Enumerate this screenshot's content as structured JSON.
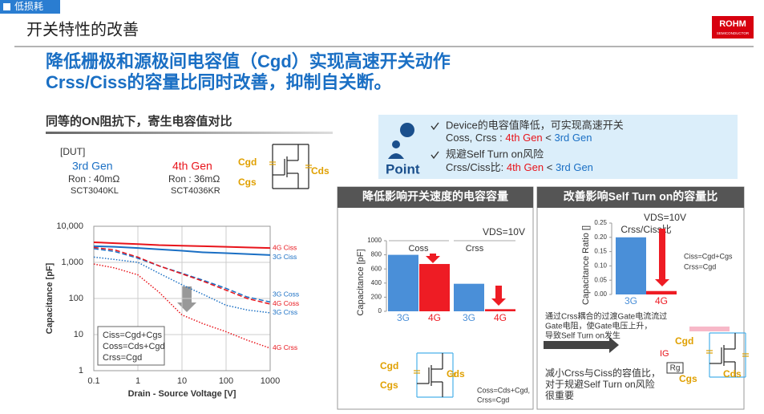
{
  "tag": "低损耗",
  "page_title": "开关特性的改善",
  "logo": {
    "name": "ROHM",
    "sub": "SEMICONDUCTOR"
  },
  "headline": [
    "降低栅极和源极间电容值（Cgd）实现高速开关动作",
    "Crss/Ciss的容量比同时改善，抑制自关断。"
  ],
  "left": {
    "heading": "同等的ON阻抗下，寄生电容值对比",
    "dut_label": "[DUT]",
    "devices": [
      {
        "gen": "3rd Gen",
        "ron": "Ron : 40mΩ",
        "part": "SCT3040KL",
        "color": "#1a6fc4"
      },
      {
        "gen": "4th Gen",
        "ron": "Ron : 36mΩ",
        "part": "SCT4036KR",
        "color": "#e8141b"
      }
    ],
    "circuit_labels": [
      "Cgd",
      "Cgs",
      "Cds"
    ],
    "chart": {
      "type": "line",
      "xlabel": "Drain - Source Voltage [V]",
      "ylabel": "Capacitance [pF]",
      "log": true,
      "grid": true,
      "x": [
        0.1,
        0.3,
        1,
        3,
        10,
        30,
        100,
        300,
        1000
      ],
      "xlim": [
        0.1,
        1000
      ],
      "ylim": [
        1,
        10000
      ],
      "xticks": [
        0.1,
        1,
        10,
        100,
        1000
      ],
      "yticks": [
        1,
        10,
        100,
        {
          "value": 1000,
          "label": "1,000"
        },
        {
          "value": 10000,
          "label": "10,000"
        }
      ],
      "series": [
        {
          "name": "4G Ciss",
          "color": "#e8141b",
          "dash": "solid",
          "values": [
            3600,
            3400,
            3200,
            3000,
            2900,
            2800,
            2700,
            2600,
            2500
          ]
        },
        {
          "name": "3G Ciss",
          "color": "#1a6fc4",
          "dash": "solid",
          "values": [
            2800,
            2700,
            2500,
            2300,
            2100,
            1900,
            1800,
            1700,
            1600
          ]
        },
        {
          "name": "3G Coss",
          "color": "#1a6fc4",
          "dash": "dashed",
          "values": [
            2400,
            2000,
            1300,
            800,
            500,
            320,
            190,
            110,
            80
          ]
        },
        {
          "name": "4G Coss",
          "color": "#e8141b",
          "dash": "dashed",
          "values": [
            2600,
            2200,
            1400,
            800,
            480,
            300,
            170,
            100,
            70
          ]
        },
        {
          "name": "3G Crss",
          "color": "#1a6fc4",
          "dash": "dotted",
          "values": [
            1400,
            1200,
            1000,
            500,
            240,
            130,
            65,
            48,
            40
          ]
        },
        {
          "name": "4G Crss",
          "color": "#e8141b",
          "dash": "dotted",
          "values": [
            900,
            700,
            450,
            150,
            35,
            20,
            12,
            7,
            4.2
          ]
        }
      ],
      "legend_box": [
        "Ciss=Cgd+Cgs",
        "Coss=Cds+Cgd",
        "Crss=Cgd"
      ]
    }
  },
  "point": {
    "label": "Point",
    "items": [
      [
        "Device的电容值降低，可实现高速开关",
        [
          "Coss, Crss : ",
          "4th Gen",
          " < ",
          "3rd Gen"
        ]
      ],
      [
        "规避Self Turn on风险",
        [
          "Crss/Ciss比: ",
          "4th Gen",
          " < ",
          "3rd Gen"
        ]
      ]
    ]
  },
  "speed_panel": {
    "header": "降低影响开关速度的电容容量",
    "chart": {
      "type": "bar",
      "ylabel": "Capacitance [pF]",
      "vds": "VDS=10V",
      "groups": [
        "Coss",
        "Crss"
      ],
      "categories": [
        "3G",
        "4G",
        "3G",
        "4G"
      ],
      "values": [
        800,
        670,
        390,
        30
      ],
      "colors": [
        "#4a8fd8",
        "#ee1c24",
        "#4a8fd8",
        "#ee1c24"
      ],
      "ylim": [
        0,
        1000
      ],
      "yticks": [
        0,
        200,
        400,
        600,
        800,
        1000
      ]
    },
    "circuit_labels": [
      "Cgd",
      "Cgs",
      "Cds"
    ],
    "formulas": [
      "Coss=Cds+Cgd,",
      "Crss=Cgd"
    ]
  },
  "turnon_panel": {
    "header": "改善影响Self Turn on的容量比",
    "chart": {
      "type": "bar",
      "ylabel": "Capacitance Ratio []",
      "vds": "VDS=10V",
      "group": "Crss/Ciss比",
      "categories": [
        "3G",
        "4G"
      ],
      "values": [
        0.2,
        0.012
      ],
      "colors": [
        "#4a8fd8",
        "#ee1c24"
      ],
      "ylim": [
        0,
        0.25
      ],
      "yticks": [
        {
          "value": 0,
          "label": "0.00"
        },
        0.05,
        {
          "value": 0.1,
          "label": "0.10"
        },
        0.15,
        {
          "value": 0.2,
          "label": "0.20"
        },
        0.25
      ],
      "legend": [
        "Ciss=Cgd+Cgs",
        "Crss=Cgd"
      ]
    },
    "note": [
      "通过Crss耦合的过渡Gate电流流过",
      "Gate电阻，使Gate电压上升，",
      "导致Self Turn on发生"
    ],
    "ig": "IG",
    "rg": "Rg",
    "circuit_labels": [
      "Cgd",
      "Cgs",
      "Cds"
    ],
    "conclusion": [
      "减小Crss与Ciss的容值比，",
      "对于规避Self Turn on风险",
      "很重要"
    ]
  }
}
